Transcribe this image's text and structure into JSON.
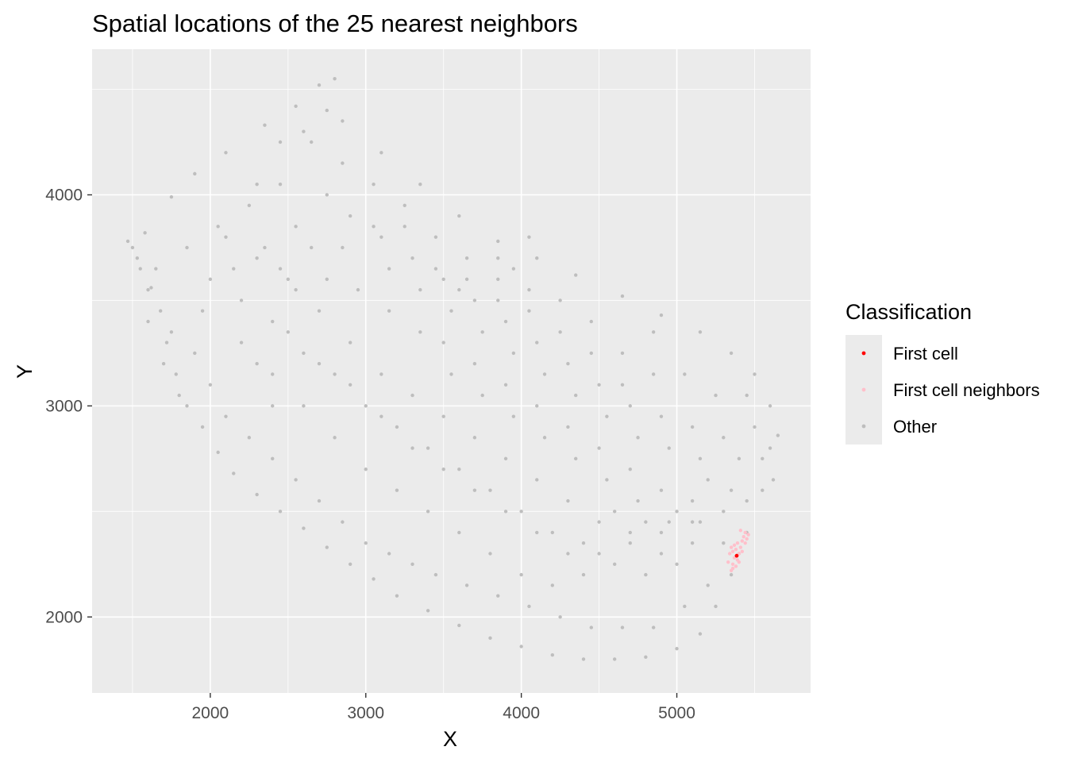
{
  "chart_data": {
    "type": "scatter",
    "title": "Spatial locations of the 25 nearest neighbors",
    "xlabel": "X",
    "ylabel": "Y",
    "xlim": [
      1240,
      5860
    ],
    "ylim": [
      1640,
      4690
    ],
    "x_ticks": [
      2000,
      3000,
      4000,
      5000
    ],
    "y_ticks": [
      2000,
      3000,
      4000
    ],
    "x_tick_labels": [
      "2000",
      "3000",
      "4000",
      "5000"
    ],
    "y_tick_labels": [
      "2000",
      "3000",
      "4000"
    ],
    "grid": true,
    "panel_background": "#ebebeb",
    "gridline_color": "#ffffff",
    "legend": {
      "title": "Classification",
      "position": "right",
      "entries": [
        {
          "label": "First cell",
          "color": "#ff0000"
        },
        {
          "label": "First cell neighbors",
          "color": "#ffc0cb"
        },
        {
          "label": "Other",
          "color": "#bebebe"
        }
      ]
    },
    "series": [
      {
        "name": "Other",
        "color": "#bebebe",
        "note_points": "dense cloud of several thousand cells forming a curved band; representative sample listed",
        "points": [
          [
            1470,
            3780
          ],
          [
            1530,
            3700
          ],
          [
            1580,
            3820
          ],
          [
            1620,
            3560
          ],
          [
            1680,
            3450
          ],
          [
            1720,
            3300
          ],
          [
            1780,
            3150
          ],
          [
            1850,
            3000
          ],
          [
            1950,
            2900
          ],
          [
            2050,
            2780
          ],
          [
            2150,
            2680
          ],
          [
            2300,
            2580
          ],
          [
            2450,
            2500
          ],
          [
            2600,
            2420
          ],
          [
            2750,
            2330
          ],
          [
            2900,
            2250
          ],
          [
            3050,
            2180
          ],
          [
            3200,
            2100
          ],
          [
            3400,
            2030
          ],
          [
            3600,
            1960
          ],
          [
            3800,
            1900
          ],
          [
            4000,
            1860
          ],
          [
            4200,
            1820
          ],
          [
            4400,
            1800
          ],
          [
            4600,
            1800
          ],
          [
            4800,
            1810
          ],
          [
            5000,
            1850
          ],
          [
            5150,
            1920
          ],
          [
            5250,
            2050
          ],
          [
            5350,
            2200
          ],
          [
            5450,
            2400
          ],
          [
            5550,
            2600
          ],
          [
            5600,
            2800
          ],
          [
            5600,
            3000
          ],
          [
            5500,
            3150
          ],
          [
            5350,
            3250
          ],
          [
            5150,
            3350
          ],
          [
            4900,
            3430
          ],
          [
            4650,
            3520
          ],
          [
            4350,
            3620
          ],
          [
            4100,
            3700
          ],
          [
            3850,
            3780
          ],
          [
            3600,
            3900
          ],
          [
            3350,
            4050
          ],
          [
            3100,
            4200
          ],
          [
            2850,
            4350
          ],
          [
            2700,
            4520
          ],
          [
            2550,
            4420
          ],
          [
            2350,
            4330
          ],
          [
            2100,
            4200
          ],
          [
            1900,
            4100
          ],
          [
            1750,
            3990
          ],
          [
            2100,
            3800
          ],
          [
            2300,
            3700
          ],
          [
            2500,
            3600
          ],
          [
            2700,
            3450
          ],
          [
            2900,
            3300
          ],
          [
            3100,
            3150
          ],
          [
            3300,
            3050
          ],
          [
            3500,
            2950
          ],
          [
            3700,
            2850
          ],
          [
            3900,
            2750
          ],
          [
            4100,
            2650
          ],
          [
            4300,
            2550
          ],
          [
            4500,
            2450
          ],
          [
            4700,
            2350
          ],
          [
            4900,
            2300
          ],
          [
            5100,
            2350
          ],
          [
            2200,
            3300
          ],
          [
            2400,
            3150
          ],
          [
            2600,
            3000
          ],
          [
            2800,
            2850
          ],
          [
            3000,
            2700
          ],
          [
            3200,
            2600
          ],
          [
            3400,
            2500
          ],
          [
            3600,
            2400
          ],
          [
            3800,
            2300
          ],
          [
            4000,
            2200
          ],
          [
            4200,
            2150
          ],
          [
            4400,
            2200
          ],
          [
            4600,
            2250
          ],
          [
            4800,
            2200
          ],
          [
            5000,
            2250
          ],
          [
            2900,
            3900
          ],
          [
            3100,
            3800
          ],
          [
            3300,
            3700
          ],
          [
            3500,
            3600
          ],
          [
            3700,
            3500
          ],
          [
            3900,
            3400
          ],
          [
            4100,
            3300
          ],
          [
            4300,
            3200
          ],
          [
            4500,
            3100
          ],
          [
            4700,
            3000
          ],
          [
            4900,
            2950
          ],
          [
            5100,
            2900
          ],
          [
            5300,
            2850
          ],
          [
            3500,
            3300
          ],
          [
            3700,
            3200
          ],
          [
            3900,
            3100
          ],
          [
            4100,
            3000
          ],
          [
            4300,
            2900
          ],
          [
            4500,
            2800
          ],
          [
            4700,
            2700
          ],
          [
            4900,
            2600
          ],
          [
            5100,
            2550
          ],
          [
            5300,
            2500
          ],
          [
            2000,
            3600
          ],
          [
            2200,
            3500
          ],
          [
            2400,
            3400
          ],
          [
            2600,
            3250
          ],
          [
            2800,
            3150
          ],
          [
            3000,
            3000
          ],
          [
            3200,
            2900
          ],
          [
            3400,
            2800
          ],
          [
            3600,
            2700
          ],
          [
            3800,
            2600
          ],
          [
            4000,
            2500
          ],
          [
            4200,
            2400
          ],
          [
            4400,
            2350
          ],
          [
            4600,
            2500
          ],
          [
            4800,
            2450
          ],
          [
            5000,
            2500
          ],
          [
            5200,
            2650
          ],
          [
            5400,
            2750
          ],
          [
            5500,
            2900
          ],
          [
            5450,
            3050
          ],
          [
            4850,
            3350
          ],
          [
            4650,
            3250
          ],
          [
            4450,
            3400
          ],
          [
            4250,
            3500
          ],
          [
            4050,
            3550
          ],
          [
            3850,
            3600
          ],
          [
            3650,
            3700
          ],
          [
            3450,
            3800
          ],
          [
            3250,
            3950
          ],
          [
            3050,
            4050
          ],
          [
            2850,
            4150
          ],
          [
            2650,
            4250
          ],
          [
            2450,
            4050
          ],
          [
            2250,
            3950
          ],
          [
            2050,
            3850
          ],
          [
            1850,
            3750
          ],
          [
            1650,
            3650
          ],
          [
            1600,
            3400
          ],
          [
            1700,
            3200
          ],
          [
            1800,
            3050
          ],
          [
            1900,
            3250
          ],
          [
            2000,
            3100
          ],
          [
            2100,
            2950
          ],
          [
            2250,
            2850
          ],
          [
            2400,
            2750
          ],
          [
            2550,
            2650
          ],
          [
            2700,
            2550
          ],
          [
            2850,
            2450
          ],
          [
            3000,
            2350
          ],
          [
            3150,
            2300
          ],
          [
            3300,
            2250
          ],
          [
            3450,
            2200
          ],
          [
            3650,
            2150
          ],
          [
            3850,
            2100
          ],
          [
            4050,
            2050
          ],
          [
            4250,
            2000
          ],
          [
            4450,
            1950
          ],
          [
            4650,
            1950
          ],
          [
            4850,
            1950
          ],
          [
            5050,
            2050
          ],
          [
            5200,
            2150
          ],
          [
            5300,
            2350
          ],
          [
            5450,
            2550
          ],
          [
            5550,
            2750
          ],
          [
            5650,
            2860
          ],
          [
            5620,
            2650
          ],
          [
            5400,
            2300
          ],
          [
            2750,
            4000
          ],
          [
            2550,
            3850
          ],
          [
            2350,
            3750
          ],
          [
            2150,
            3650
          ],
          [
            1950,
            3450
          ],
          [
            1750,
            3350
          ],
          [
            3550,
            3150
          ],
          [
            3750,
            3050
          ],
          [
            3950,
            2950
          ],
          [
            4150,
            2850
          ],
          [
            4350,
            2750
          ],
          [
            4550,
            2650
          ],
          [
            4750,
            2550
          ],
          [
            4950,
            2450
          ],
          [
            5150,
            2450
          ],
          [
            5350,
            2600
          ],
          [
            3150,
            3450
          ],
          [
            3350,
            3350
          ],
          [
            3550,
            3450
          ],
          [
            3750,
            3350
          ],
          [
            3950,
            3250
          ],
          [
            4150,
            3150
          ],
          [
            4350,
            3050
          ],
          [
            4550,
            2950
          ],
          [
            4750,
            2850
          ],
          [
            4950,
            2800
          ],
          [
            5150,
            2750
          ],
          [
            5250,
            3050
          ],
          [
            5050,
            3150
          ],
          [
            4850,
            3150
          ],
          [
            4650,
            3100
          ],
          [
            4450,
            3250
          ],
          [
            4250,
            3350
          ],
          [
            4050,
            3450
          ],
          [
            3850,
            3500
          ],
          [
            2550,
            3550
          ],
          [
            2750,
            3600
          ],
          [
            2950,
            3550
          ],
          [
            3150,
            3650
          ],
          [
            3350,
            3550
          ],
          [
            2650,
            3750
          ],
          [
            2450,
            3650
          ],
          [
            2850,
            3750
          ],
          [
            3050,
            3850
          ],
          [
            3250,
            3850
          ],
          [
            3450,
            3650
          ],
          [
            3650,
            3600
          ],
          [
            3850,
            3700
          ],
          [
            3950,
            3650
          ],
          [
            4050,
            3800
          ],
          [
            3600,
            3550
          ],
          [
            2300,
            4050
          ],
          [
            2450,
            4250
          ],
          [
            2600,
            4300
          ],
          [
            2750,
            4400
          ],
          [
            2800,
            4550
          ],
          [
            2400,
            3000
          ],
          [
            2300,
            3200
          ],
          [
            2500,
            3350
          ],
          [
            2700,
            3200
          ],
          [
            2900,
            3100
          ],
          [
            3100,
            2950
          ],
          [
            3300,
            2800
          ],
          [
            3500,
            2700
          ],
          [
            3700,
            2600
          ],
          [
            3900,
            2500
          ],
          [
            4100,
            2400
          ],
          [
            4300,
            2300
          ],
          [
            4500,
            2300
          ],
          [
            4700,
            2400
          ],
          [
            4900,
            2400
          ],
          [
            5100,
            2450
          ],
          [
            1600,
            3550
          ],
          [
            1550,
            3650
          ],
          [
            1500,
            3750
          ]
        ]
      },
      {
        "name": "First cell neighbors",
        "color": "#ffc0cb",
        "points": [
          [
            5330,
            2260
          ],
          [
            5340,
            2300
          ],
          [
            5350,
            2330
          ],
          [
            5360,
            2250
          ],
          [
            5370,
            2280
          ],
          [
            5380,
            2320
          ],
          [
            5390,
            2350
          ],
          [
            5400,
            2300
          ],
          [
            5410,
            2330
          ],
          [
            5420,
            2360
          ],
          [
            5430,
            2380
          ],
          [
            5440,
            2400
          ],
          [
            5450,
            2370
          ],
          [
            5400,
            2260
          ],
          [
            5380,
            2240
          ],
          [
            5360,
            2230
          ],
          [
            5350,
            2220
          ],
          [
            5420,
            2310
          ],
          [
            5440,
            2350
          ],
          [
            5460,
            2390
          ],
          [
            5410,
            2410
          ],
          [
            5390,
            2270
          ],
          [
            5370,
            2340
          ],
          [
            5360,
            2310
          ]
        ]
      },
      {
        "name": "First cell",
        "color": "#ff0000",
        "points": [
          [
            5385,
            2290
          ]
        ]
      }
    ]
  }
}
